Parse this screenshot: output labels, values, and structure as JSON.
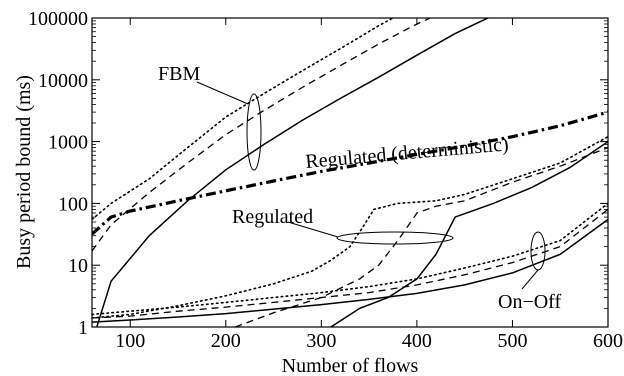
{
  "chart_data": {
    "type": "line",
    "xlabel": "Number of flows",
    "ylabel": "Busy period bound (ms)",
    "xlim": [
      60,
      600
    ],
    "ylim": [
      1,
      100000
    ],
    "yscale": "log",
    "grid": false,
    "x_ticks": [
      100,
      200,
      300,
      400,
      500,
      600
    ],
    "x_tick_labels": [
      "100",
      "200",
      "300",
      "400",
      "500",
      "600"
    ],
    "y_ticks": [
      1,
      10,
      100,
      1000,
      10000,
      100000
    ],
    "y_tick_labels": [
      "1",
      "10",
      "100",
      "1000",
      "10000",
      "100000"
    ],
    "series": [
      {
        "group": "FBM",
        "style": "dotted",
        "points": [
          [
            60,
            55
          ],
          [
            80,
            100
          ],
          [
            120,
            250
          ],
          [
            160,
            800
          ],
          [
            200,
            2500
          ],
          [
            240,
            6000
          ],
          [
            280,
            14000
          ],
          [
            320,
            32000
          ],
          [
            360,
            75000
          ],
          [
            380,
            110000
          ]
        ]
      },
      {
        "group": "FBM",
        "style": "dashed",
        "points": [
          [
            60,
            17
          ],
          [
            80,
            45
          ],
          [
            120,
            150
          ],
          [
            160,
            450
          ],
          [
            200,
            1300
          ],
          [
            240,
            3200
          ],
          [
            280,
            7500
          ],
          [
            320,
            17000
          ],
          [
            360,
            38000
          ],
          [
            400,
            80000
          ],
          [
            420,
            110000
          ]
        ]
      },
      {
        "group": "FBM",
        "style": "solid",
        "points": [
          [
            65,
            1
          ],
          [
            80,
            5.5
          ],
          [
            120,
            30
          ],
          [
            160,
            110
          ],
          [
            200,
            350
          ],
          [
            240,
            900
          ],
          [
            280,
            2200
          ],
          [
            320,
            5000
          ],
          [
            360,
            11000
          ],
          [
            400,
            25000
          ],
          [
            440,
            56000
          ],
          [
            480,
            110000
          ]
        ]
      },
      {
        "group": "Regulated (deterministic)",
        "style": "dashdot",
        "points": [
          [
            60,
            32
          ],
          [
            80,
            60
          ],
          [
            100,
            75
          ],
          [
            150,
            110
          ],
          [
            200,
            160
          ],
          [
            250,
            230
          ],
          [
            300,
            330
          ],
          [
            350,
            450
          ],
          [
            400,
            620
          ],
          [
            450,
            850
          ],
          [
            500,
            1200
          ],
          [
            550,
            1800
          ],
          [
            600,
            3000
          ]
        ]
      },
      {
        "group": "Regulated",
        "style": "dotted",
        "points": [
          [
            60,
            1.4
          ],
          [
            100,
            1.6
          ],
          [
            150,
            2.2
          ],
          [
            200,
            3.2
          ],
          [
            250,
            5
          ],
          [
            290,
            8
          ],
          [
            310,
            12
          ],
          [
            330,
            20
          ],
          [
            345,
            45
          ],
          [
            355,
            80
          ],
          [
            380,
            100
          ],
          [
            420,
            110
          ],
          [
            450,
            140
          ],
          [
            500,
            250
          ],
          [
            550,
            450
          ],
          [
            600,
            1200
          ]
        ]
      },
      {
        "group": "Regulated",
        "style": "dashed",
        "points": [
          [
            210,
            1
          ],
          [
            250,
            1.7
          ],
          [
            300,
            3
          ],
          [
            340,
            6
          ],
          [
            360,
            10
          ],
          [
            380,
            25
          ],
          [
            400,
            70
          ],
          [
            420,
            90
          ],
          [
            450,
            110
          ],
          [
            500,
            220
          ],
          [
            550,
            400
          ],
          [
            600,
            800
          ]
        ]
      },
      {
        "group": "Regulated",
        "style": "solid",
        "points": [
          [
            310,
            1
          ],
          [
            340,
            2
          ],
          [
            370,
            3
          ],
          [
            400,
            6
          ],
          [
            420,
            15
          ],
          [
            440,
            60
          ],
          [
            480,
            100
          ],
          [
            520,
            180
          ],
          [
            560,
            380
          ],
          [
            600,
            1000
          ]
        ]
      },
      {
        "group": "On-Off",
        "style": "dotted",
        "points": [
          [
            60,
            1.6
          ],
          [
            100,
            1.8
          ],
          [
            150,
            2.1
          ],
          [
            200,
            2.5
          ],
          [
            250,
            3
          ],
          [
            300,
            3.6
          ],
          [
            350,
            4.5
          ],
          [
            400,
            6
          ],
          [
            450,
            9
          ],
          [
            500,
            14
          ],
          [
            550,
            25
          ],
          [
            600,
            100
          ]
        ]
      },
      {
        "group": "On-Off",
        "style": "dashed",
        "points": [
          [
            60,
            1.4
          ],
          [
            100,
            1.5
          ],
          [
            150,
            1.8
          ],
          [
            200,
            2.1
          ],
          [
            250,
            2.5
          ],
          [
            300,
            3
          ],
          [
            350,
            3.6
          ],
          [
            400,
            4.8
          ],
          [
            450,
            7
          ],
          [
            500,
            11
          ],
          [
            550,
            20
          ],
          [
            600,
            80
          ]
        ]
      },
      {
        "group": "On-Off",
        "style": "solid",
        "points": [
          [
            60,
            1.2
          ],
          [
            100,
            1.3
          ],
          [
            150,
            1.45
          ],
          [
            200,
            1.65
          ],
          [
            250,
            1.95
          ],
          [
            300,
            2.3
          ],
          [
            350,
            2.8
          ],
          [
            400,
            3.5
          ],
          [
            450,
            4.8
          ],
          [
            500,
            7.5
          ],
          [
            550,
            15
          ],
          [
            600,
            55
          ]
        ]
      }
    ],
    "annotations": [
      {
        "text": "FBM"
      },
      {
        "text": "Regulated (deterministic)"
      },
      {
        "text": "Regulated"
      },
      {
        "text": "On−Off"
      }
    ]
  }
}
